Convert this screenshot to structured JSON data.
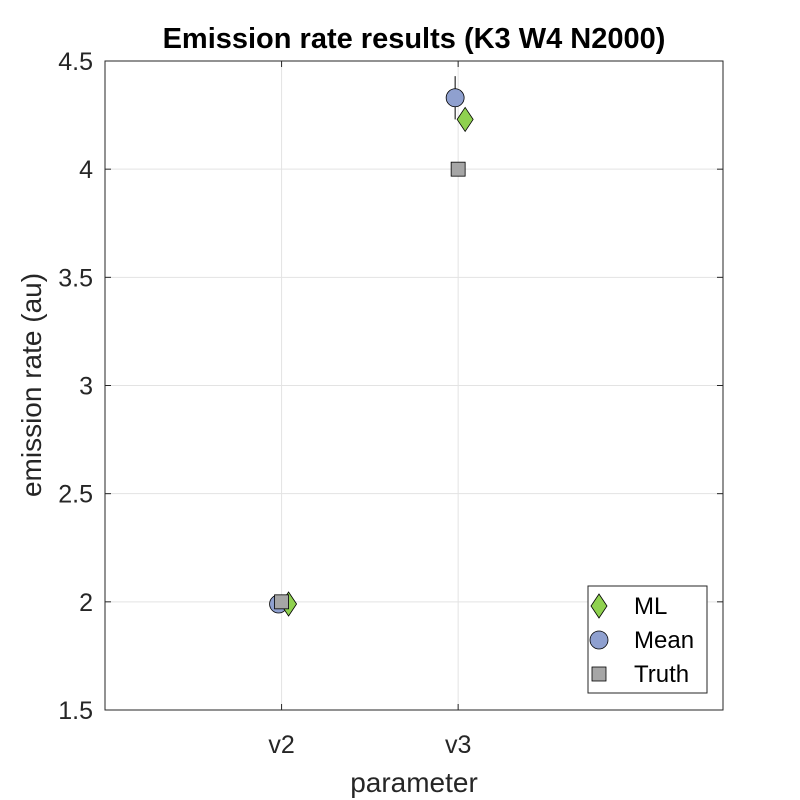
{
  "chart_data": {
    "type": "scatter",
    "title": "Emission rate results (K3 W4 N2000)",
    "xlabel": "parameter",
    "ylabel": "emission rate (au)",
    "categories": [
      "v2",
      "v3"
    ],
    "ylim": [
      1.5,
      4.5
    ],
    "yticks": [
      "1.5",
      "2",
      "2.5",
      "3",
      "3.5",
      "4",
      "4.5"
    ],
    "grid": true,
    "legend_position": "bottom-right",
    "series": [
      {
        "name": "ML",
        "marker": "diamond",
        "color": "#8fd14f",
        "values": [
          1.99,
          4.23
        ]
      },
      {
        "name": "Mean",
        "marker": "circle",
        "color": "#8fa0cf",
        "values": [
          1.99,
          4.33
        ],
        "error": [
          0.02,
          0.1
        ]
      },
      {
        "name": "Truth",
        "marker": "square",
        "color": "#a6a6a6",
        "values": [
          2.0,
          4.0
        ]
      }
    ]
  }
}
